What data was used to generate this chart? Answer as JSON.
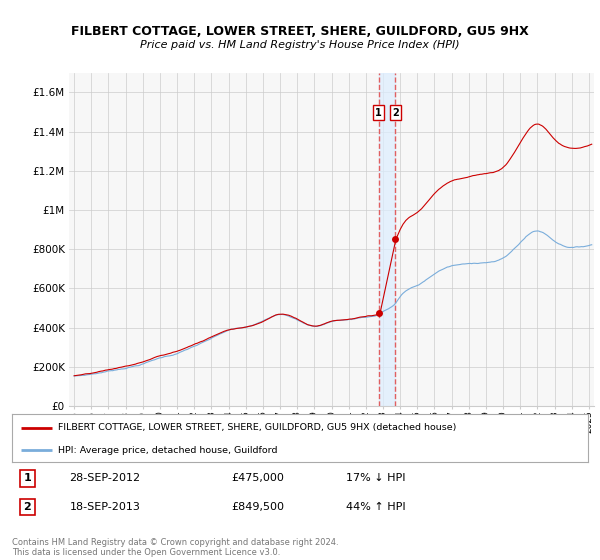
{
  "title": "FILBERT COTTAGE, LOWER STREET, SHERE, GUILDFORD, GU5 9HX",
  "subtitle": "Price paid vs. HM Land Registry's House Price Index (HPI)",
  "legend_line1": "FILBERT COTTAGE, LOWER STREET, SHERE, GUILDFORD, GU5 9HX (detached house)",
  "legend_line2": "HPI: Average price, detached house, Guildford",
  "transaction1_label": "1",
  "transaction1_date": "28-SEP-2012",
  "transaction1_price": "£475,000",
  "transaction1_hpi": "17% ↓ HPI",
  "transaction2_label": "2",
  "transaction2_date": "18-SEP-2013",
  "transaction2_price": "£849,500",
  "transaction2_hpi": "44% ↑ HPI",
  "footer": "Contains HM Land Registry data © Crown copyright and database right 2024.\nThis data is licensed under the Open Government Licence v3.0.",
  "red_color": "#cc0000",
  "blue_color": "#7aaddb",
  "dashed_color": "#e06060",
  "shade_color": "#ddeeff",
  "background_color": "#ffffff",
  "plot_bg_color": "#f7f7f7",
  "grid_color": "#cccccc",
  "ylim": [
    0,
    1700000
  ],
  "yticks": [
    0,
    200000,
    400000,
    600000,
    800000,
    1000000,
    1200000,
    1400000,
    1600000
  ],
  "ytick_labels": [
    "£0",
    "£200K",
    "£400K",
    "£600K",
    "£800K",
    "£1M",
    "£1.2M",
    "£1.4M",
    "£1.6M"
  ],
  "transaction1_x": 2012.75,
  "transaction2_x": 2013.72,
  "transaction1_y": 475000,
  "transaction2_y": 849500,
  "xlim_left": 1994.7,
  "xlim_right": 2025.3
}
